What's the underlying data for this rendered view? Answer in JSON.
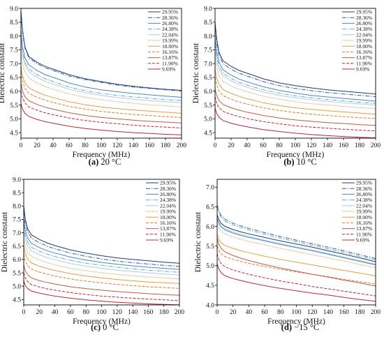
{
  "legend_labels": [
    "29.95%",
    "28.36%",
    "26.80%",
    "24.38%",
    "22.04%",
    "19.99%",
    "18.00%",
    "16.16%",
    "13.87%",
    "11.90%",
    "9.69%"
  ],
  "series_styles": [
    {
      "color": "#1f3a7a",
      "dash": ""
    },
    {
      "color": "#2f5f9a",
      "dash": "6,2,1.5,2"
    },
    {
      "color": "#4a86b8",
      "dash": ""
    },
    {
      "color": "#6aa3cc",
      "dash": "6,2,1.5,2"
    },
    {
      "color": "#a6d0e4",
      "dash": ""
    },
    {
      "color": "#c9a35a",
      "dash": "1.5,1.5"
    },
    {
      "color": "#e0a040",
      "dash": ""
    },
    {
      "color": "#e07a30",
      "dash": "4,2"
    },
    {
      "color": "#b86040",
      "dash": ""
    },
    {
      "color": "#c02040",
      "dash": "4,2"
    },
    {
      "color": "#c0282d",
      "dash": ""
    }
  ],
  "chart_data": [
    {
      "type": "line",
      "caption_letter": "(a)",
      "caption_text": " 20 °C",
      "xlabel": "Frequency (MHz)",
      "ylabel": "Dielectric constant",
      "xlim": [
        0,
        200
      ],
      "ylim": [
        4.3,
        9.0
      ],
      "xticks": [
        0,
        20,
        40,
        60,
        80,
        100,
        120,
        140,
        160,
        180,
        200
      ],
      "yticks": [
        4.5,
        5.0,
        5.5,
        6.0,
        6.5,
        7.0,
        7.5,
        8.0,
        8.5,
        9.0
      ],
      "x": [
        0,
        2,
        5,
        10,
        20,
        30,
        40,
        60,
        80,
        100,
        120,
        140,
        160,
        180,
        200
      ],
      "series": [
        {
          "name": "29.95%",
          "values": [
            8.9,
            8.2,
            7.6,
            7.25,
            7.05,
            6.9,
            6.8,
            6.6,
            6.45,
            6.35,
            6.25,
            6.18,
            6.12,
            6.07,
            6.03
          ]
        },
        {
          "name": "28.36%",
          "values": [
            8.8,
            8.1,
            7.55,
            7.2,
            7.0,
            6.85,
            6.75,
            6.55,
            6.42,
            6.32,
            6.22,
            6.15,
            6.1,
            6.05,
            6.0
          ]
        },
        {
          "name": "26.80%",
          "values": [
            8.2,
            7.6,
            7.2,
            6.95,
            6.75,
            6.6,
            6.5,
            6.3,
            6.15,
            6.05,
            5.98,
            5.92,
            5.87,
            5.82,
            5.78
          ]
        },
        {
          "name": "24.38%",
          "values": [
            7.9,
            7.4,
            7.05,
            6.8,
            6.6,
            6.45,
            6.35,
            6.15,
            6.02,
            5.92,
            5.85,
            5.79,
            5.74,
            5.7,
            5.66
          ]
        },
        {
          "name": "22.04%",
          "values": [
            7.8,
            7.3,
            6.95,
            6.7,
            6.5,
            6.36,
            6.26,
            6.07,
            5.95,
            5.85,
            5.77,
            5.71,
            5.66,
            5.62,
            5.58
          ]
        },
        {
          "name": "19.99%",
          "values": [
            7.4,
            7.0,
            6.7,
            6.48,
            6.3,
            6.17,
            6.07,
            5.9,
            5.78,
            5.69,
            5.62,
            5.56,
            5.51,
            5.47,
            5.43
          ]
        },
        {
          "name": "18.00%",
          "values": [
            6.9,
            6.55,
            6.3,
            6.12,
            5.97,
            5.86,
            5.77,
            5.62,
            5.51,
            5.43,
            5.37,
            5.32,
            5.28,
            5.24,
            5.2
          ]
        },
        {
          "name": "16.16%",
          "values": [
            6.7,
            6.35,
            6.1,
            5.92,
            5.78,
            5.68,
            5.59,
            5.45,
            5.35,
            5.27,
            5.21,
            5.16,
            5.12,
            5.08,
            5.05
          ]
        },
        {
          "name": "13.87%",
          "values": [
            6.3,
            6.0,
            5.8,
            5.65,
            5.52,
            5.42,
            5.35,
            5.22,
            5.12,
            5.05,
            5.0,
            4.95,
            4.91,
            4.88,
            4.85
          ]
        },
        {
          "name": "11.90%",
          "values": [
            6.0,
            5.75,
            5.57,
            5.43,
            5.31,
            5.22,
            5.15,
            5.03,
            4.94,
            4.87,
            4.82,
            4.77,
            4.73,
            4.7,
            4.67
          ]
        },
        {
          "name": "9.69%",
          "values": [
            5.55,
            5.35,
            5.2,
            5.08,
            4.98,
            4.9,
            4.84,
            4.73,
            4.65,
            4.59,
            4.54,
            4.5,
            4.47,
            4.44,
            4.42
          ]
        }
      ]
    },
    {
      "type": "line",
      "caption_letter": "(b)",
      "caption_text": " 10 °C",
      "xlabel": "Frequency (MHz)",
      "ylabel": "Dielectric constant",
      "xlim": [
        0,
        200
      ],
      "ylim": [
        4.3,
        9.0
      ],
      "xticks": [
        0,
        20,
        40,
        60,
        80,
        100,
        120,
        140,
        160,
        180,
        200
      ],
      "yticks": [
        4.5,
        5.0,
        5.5,
        6.0,
        6.5,
        7.0,
        7.5,
        8.0,
        8.5,
        9.0
      ],
      "x": [
        0,
        2,
        5,
        10,
        20,
        30,
        40,
        60,
        80,
        100,
        120,
        140,
        160,
        180,
        200
      ],
      "series": [
        {
          "name": "29.95%",
          "values": [
            8.5,
            7.9,
            7.4,
            7.1,
            6.9,
            6.75,
            6.65,
            6.45,
            6.3,
            6.2,
            6.12,
            6.05,
            6.0,
            5.95,
            5.9
          ]
        },
        {
          "name": "28.36%",
          "values": [
            8.3,
            7.75,
            7.3,
            7.0,
            6.8,
            6.65,
            6.55,
            6.35,
            6.2,
            6.1,
            6.02,
            5.95,
            5.9,
            5.85,
            5.8
          ]
        },
        {
          "name": "26.80%",
          "values": [
            7.9,
            7.45,
            7.05,
            6.78,
            6.58,
            6.44,
            6.34,
            6.16,
            6.03,
            5.93,
            5.85,
            5.79,
            5.74,
            5.69,
            5.64
          ]
        },
        {
          "name": "24.38%",
          "values": [
            7.7,
            7.25,
            6.9,
            6.65,
            6.46,
            6.32,
            6.22,
            6.05,
            5.93,
            5.83,
            5.76,
            5.7,
            5.65,
            5.6,
            5.56
          ]
        },
        {
          "name": "22.04%",
          "values": [
            7.5,
            7.1,
            6.78,
            6.55,
            6.37,
            6.24,
            6.14,
            5.97,
            5.85,
            5.76,
            5.69,
            5.63,
            5.58,
            5.54,
            5.5
          ]
        },
        {
          "name": "19.99%",
          "values": [
            7.2,
            6.85,
            6.57,
            6.36,
            6.19,
            6.07,
            5.98,
            5.82,
            5.71,
            5.62,
            5.55,
            5.5,
            5.45,
            5.41,
            5.37
          ]
        },
        {
          "name": "18.00%",
          "values": [
            6.8,
            6.48,
            6.24,
            6.06,
            5.92,
            5.81,
            5.73,
            5.58,
            5.48,
            5.4,
            5.34,
            5.29,
            5.25,
            5.21,
            5.17
          ]
        },
        {
          "name": "16.16%",
          "values": [
            6.5,
            6.22,
            6.0,
            5.84,
            5.71,
            5.61,
            5.53,
            5.4,
            5.3,
            5.23,
            5.17,
            5.12,
            5.08,
            5.04,
            5.01
          ]
        },
        {
          "name": "13.87%",
          "values": [
            6.1,
            5.85,
            5.66,
            5.52,
            5.4,
            5.31,
            5.24,
            5.12,
            5.03,
            4.96,
            4.91,
            4.86,
            4.83,
            4.79,
            4.76
          ]
        },
        {
          "name": "11.90%",
          "values": [
            5.8,
            5.57,
            5.4,
            5.27,
            5.16,
            5.08,
            5.01,
            4.9,
            4.82,
            4.75,
            4.7,
            4.66,
            4.62,
            4.59,
            4.56
          ]
        },
        {
          "name": "9.69%",
          "values": [
            5.4,
            5.2,
            5.05,
            4.94,
            4.84,
            4.77,
            4.71,
            4.61,
            4.54,
            4.48,
            4.43,
            4.39,
            4.36,
            4.33,
            4.31
          ]
        }
      ]
    },
    {
      "type": "line",
      "caption_letter": "(c)",
      "caption_text": " 0 °C",
      "xlabel": "Frequency (MHz)",
      "ylabel": "Dielectric constant",
      "xlim": [
        0,
        200
      ],
      "ylim": [
        4.3,
        9.0
      ],
      "xticks": [
        0,
        20,
        40,
        60,
        80,
        100,
        120,
        140,
        160,
        180,
        200
      ],
      "yticks": [
        4.5,
        5.0,
        5.5,
        6.0,
        6.5,
        7.0,
        7.5,
        8.0,
        8.5,
        9.0
      ],
      "x": [
        0,
        2,
        5,
        10,
        20,
        30,
        40,
        60,
        80,
        100,
        120,
        140,
        160,
        180,
        200
      ],
      "series": [
        {
          "name": "29.95%",
          "values": [
            8.0,
            7.5,
            7.15,
            6.92,
            6.75,
            6.62,
            6.52,
            6.36,
            6.24,
            6.14,
            6.06,
            6.0,
            5.95,
            5.9,
            5.86
          ]
        },
        {
          "name": "28.36%",
          "values": [
            7.8,
            7.35,
            7.02,
            6.8,
            6.63,
            6.5,
            6.4,
            6.24,
            6.12,
            6.02,
            5.94,
            5.88,
            5.83,
            5.78,
            5.74
          ]
        },
        {
          "name": "26.80%",
          "values": [
            7.5,
            7.1,
            6.8,
            6.6,
            6.45,
            6.33,
            6.24,
            6.09,
            5.98,
            5.89,
            5.82,
            5.76,
            5.71,
            5.67,
            5.63
          ]
        },
        {
          "name": "24.38%",
          "values": [
            7.3,
            6.92,
            6.65,
            6.46,
            6.31,
            6.2,
            6.11,
            5.97,
            5.86,
            5.78,
            5.71,
            5.65,
            5.6,
            5.56,
            5.52
          ]
        },
        {
          "name": "22.04%",
          "values": [
            7.1,
            6.75,
            6.5,
            6.32,
            6.18,
            6.07,
            5.99,
            5.85,
            5.75,
            5.67,
            5.6,
            5.55,
            5.5,
            5.46,
            5.42
          ]
        },
        {
          "name": "19.99%",
          "values": [
            6.8,
            6.5,
            6.27,
            6.11,
            5.98,
            5.88,
            5.8,
            5.67,
            5.58,
            5.5,
            5.44,
            5.39,
            5.35,
            5.31,
            5.27
          ]
        },
        {
          "name": "18.00%",
          "values": [
            6.5,
            6.22,
            6.02,
            5.87,
            5.75,
            5.66,
            5.59,
            5.47,
            5.38,
            5.31,
            5.25,
            5.2,
            5.16,
            5.13,
            5.1
          ]
        },
        {
          "name": "16.16%",
          "values": [
            6.2,
            5.95,
            5.77,
            5.64,
            5.53,
            5.45,
            5.38,
            5.27,
            5.19,
            5.12,
            5.07,
            5.02,
            4.98,
            4.95,
            4.92
          ]
        },
        {
          "name": "13.87%",
          "values": [
            5.8,
            5.58,
            5.43,
            5.31,
            5.21,
            5.14,
            5.08,
            4.98,
            4.91,
            4.85,
            4.8,
            4.76,
            4.72,
            4.69,
            4.66
          ]
        },
        {
          "name": "11.90%",
          "values": [
            5.5,
            5.31,
            5.17,
            5.06,
            4.97,
            4.9,
            4.85,
            4.76,
            4.69,
            4.63,
            4.59,
            4.55,
            4.52,
            4.49,
            4.46
          ]
        },
        {
          "name": "9.69%",
          "values": [
            5.2,
            5.03,
            4.91,
            4.82,
            4.74,
            4.68,
            4.63,
            4.55,
            4.49,
            4.44,
            4.4,
            4.37,
            4.34,
            4.32,
            4.3
          ]
        }
      ]
    },
    {
      "type": "line",
      "caption_letter": "(d)",
      "caption_text": " −15 °C",
      "xlabel": "Frequency (MHz)",
      "ylabel": "Dielectric constant",
      "xlim": [
        0,
        200
      ],
      "ylim": [
        4.0,
        7.2
      ],
      "xticks": [
        0,
        20,
        40,
        60,
        80,
        100,
        120,
        140,
        160,
        180,
        200
      ],
      "yticks": [
        4.0,
        4.5,
        5.0,
        5.5,
        6.0,
        6.5,
        7.0
      ],
      "x": [
        0,
        2,
        5,
        10,
        20,
        30,
        40,
        60,
        80,
        100,
        120,
        140,
        160,
        180,
        200
      ],
      "series": [
        {
          "name": "29.95%",
          "values": [
            6.3,
            6.18,
            6.08,
            6.0,
            5.92,
            5.86,
            5.81,
            5.72,
            5.63,
            5.55,
            5.47,
            5.38,
            5.29,
            5.2,
            5.1
          ]
        },
        {
          "name": "28.36%",
          "values": [
            6.55,
            6.4,
            6.28,
            6.18,
            6.08,
            6.01,
            5.95,
            5.84,
            5.74,
            5.65,
            5.56,
            5.47,
            5.38,
            5.28,
            5.18
          ]
        },
        {
          "name": "26.80%",
          "values": [
            6.2,
            6.08,
            5.99,
            5.91,
            5.83,
            5.77,
            5.72,
            5.63,
            5.54,
            5.46,
            5.38,
            5.29,
            5.2,
            5.11,
            5.02
          ]
        },
        {
          "name": "24.38%",
          "values": [
            6.5,
            6.35,
            6.23,
            6.13,
            6.04,
            5.97,
            5.91,
            5.8,
            5.7,
            5.61,
            5.52,
            5.43,
            5.34,
            5.24,
            5.15
          ]
        },
        {
          "name": "22.04%",
          "values": [
            6.25,
            6.12,
            6.02,
            5.94,
            5.86,
            5.8,
            5.75,
            5.65,
            5.56,
            5.48,
            5.4,
            5.31,
            5.22,
            5.13,
            5.04
          ]
        },
        {
          "name": "19.99%",
          "values": [
            6.1,
            5.98,
            5.89,
            5.81,
            5.73,
            5.67,
            5.62,
            5.53,
            5.44,
            5.36,
            5.28,
            5.2,
            5.12,
            5.03,
            4.95
          ]
        },
        {
          "name": "18.00%",
          "values": [
            5.8,
            5.68,
            5.59,
            5.51,
            5.44,
            5.38,
            5.33,
            5.24,
            5.16,
            5.09,
            5.02,
            4.95,
            4.88,
            4.81,
            4.74
          ]
        },
        {
          "name": "16.16%",
          "values": [
            5.5,
            5.39,
            5.3,
            5.23,
            5.16,
            5.11,
            5.06,
            4.98,
            4.91,
            4.84,
            4.78,
            4.72,
            4.65,
            4.59,
            4.53
          ]
        },
        {
          "name": "13.87%",
          "values": [
            5.7,
            5.55,
            5.44,
            5.35,
            5.26,
            5.19,
            5.13,
            5.03,
            4.94,
            4.86,
            4.78,
            4.71,
            4.63,
            4.56,
            4.48
          ]
        },
        {
          "name": "11.90%",
          "values": [
            5.3,
            5.16,
            5.05,
            4.97,
            4.89,
            4.83,
            4.78,
            4.69,
            4.61,
            4.54,
            4.47,
            4.41,
            4.35,
            4.29,
            4.23
          ]
        },
        {
          "name": "9.69%",
          "values": [
            5.05,
            4.92,
            4.82,
            4.74,
            4.67,
            4.62,
            4.57,
            4.49,
            4.42,
            4.36,
            4.3,
            4.25,
            4.19,
            4.14,
            4.09
          ]
        }
      ]
    }
  ]
}
